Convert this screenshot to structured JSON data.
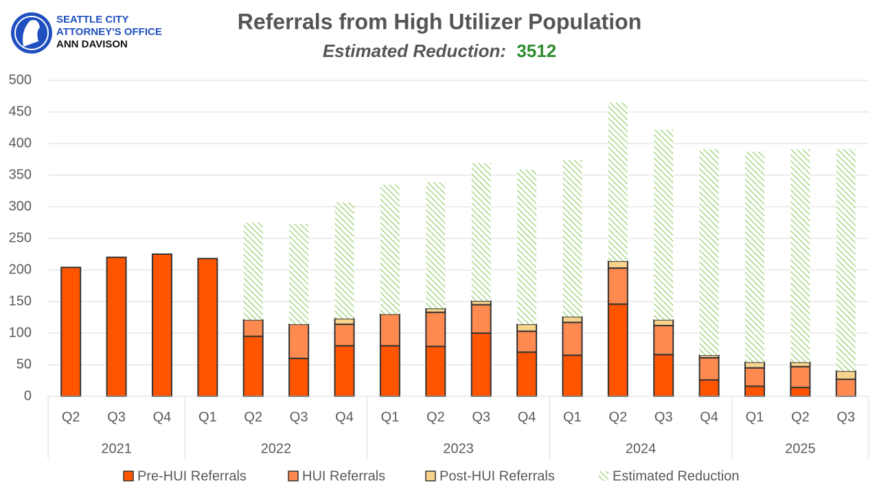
{
  "logo": {
    "lines": [
      "SEATTLE CITY",
      "ATTORNEY'S OFFICE",
      "ANN DAVISON"
    ]
  },
  "chart_data": {
    "type": "stacked-bar",
    "title": "Referrals from High Utilizer Population",
    "subtitle": "Estimated Reduction:",
    "estimated_reduction_total": 3512,
    "groups": [
      {
        "label": "2021",
        "categories": [
          "Q2",
          "Q3",
          "Q4"
        ]
      },
      {
        "label": "2022",
        "categories": [
          "Q1",
          "Q2",
          "Q3",
          "Q4"
        ]
      },
      {
        "label": "2023",
        "categories": [
          "Q1",
          "Q2",
          "Q3",
          "Q4"
        ]
      },
      {
        "label": "2024",
        "categories": [
          "Q1",
          "Q2",
          "Q3",
          "Q4"
        ]
      },
      {
        "label": "2025",
        "categories": [
          "Q1",
          "Q2",
          "Q3"
        ]
      }
    ],
    "series": [
      {
        "name": "Pre-HUI Referrals",
        "color": "#ff5500",
        "values": [
          204,
          220,
          225,
          218,
          95,
          60,
          80,
          80,
          79,
          100,
          70,
          65,
          146,
          66,
          26,
          16,
          14,
          0
        ]
      },
      {
        "name": "HUI Referrals",
        "color": "#ff8a50",
        "values": [
          null,
          null,
          null,
          null,
          26,
          54,
          34,
          50,
          54,
          45,
          33,
          52,
          57,
          46,
          35,
          29,
          33,
          27
        ]
      },
      {
        "name": "Post-HUI Referrals",
        "color": "#f8d38c",
        "values": [
          null,
          null,
          null,
          null,
          0,
          0,
          9,
          0,
          6,
          6,
          11,
          9,
          11,
          9,
          4,
          9,
          7,
          13
        ]
      },
      {
        "name": "Estimated Reduction",
        "color": "#a6d785",
        "pattern": "hatch",
        "values": [
          null,
          null,
          null,
          null,
          154,
          159,
          184,
          205,
          200,
          218,
          245,
          248,
          251,
          301,
          326,
          333,
          337,
          351
        ]
      }
    ],
    "ylim": [
      0,
      500
    ],
    "yticks": [
      0,
      50,
      100,
      150,
      200,
      250,
      300,
      350,
      400,
      450,
      500
    ],
    "grid": true
  }
}
